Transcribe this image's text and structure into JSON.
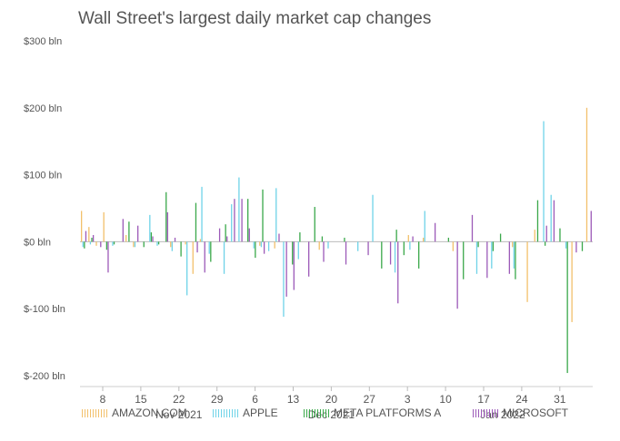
{
  "chart_data": {
    "type": "bar",
    "title": "Wall Street's largest daily market cap changes",
    "xlabel": "",
    "ylabel": "",
    "ylim": [
      -200,
      300
    ],
    "yticks": [
      300,
      200,
      100,
      0,
      -100,
      -200
    ],
    "ytick_labels": [
      "$300 bln",
      "$200 bln",
      "$100 bln",
      "$0 bln",
      "$-100 bln",
      "$-200 bln"
    ],
    "xtick_labels": [
      "8",
      "15",
      "22",
      "29",
      "6",
      "13",
      "20",
      "27",
      "3",
      "10",
      "17",
      "24",
      "31"
    ],
    "month_labels": [
      {
        "label": "Nov 2021",
        "tick": 2
      },
      {
        "label": "Dec 2021",
        "tick": 6
      },
      {
        "label": "Jan 2022",
        "tick": 10.5
      }
    ],
    "grid": false,
    "legend_position": "bottom",
    "series": [
      {
        "name": "AMAZON.COM",
        "color": "#f2c06b",
        "values": [
          46,
          22,
          -6,
          44,
          0,
          0,
          10,
          -8,
          0,
          0,
          0,
          0,
          -8,
          0,
          -4,
          -48,
          4,
          0,
          0,
          0,
          0,
          0,
          0,
          0,
          -6,
          0,
          -10,
          0,
          0,
          0,
          0,
          0,
          -12,
          0,
          0,
          0,
          0,
          0,
          0,
          0,
          0,
          0,
          0,
          0,
          10,
          0,
          6,
          0,
          0,
          0,
          -14,
          0,
          0,
          0,
          0,
          0,
          0,
          0,
          -8,
          0,
          -90,
          18,
          0,
          0,
          0,
          0,
          -120,
          0,
          200
        ]
      },
      {
        "name": "APPLE",
        "color": "#6fd3e8",
        "values": [
          -8,
          -4,
          0,
          0,
          -6,
          0,
          0,
          -8,
          0,
          40,
          -6,
          0,
          -14,
          0,
          -80,
          0,
          82,
          -18,
          0,
          -48,
          56,
          96,
          0,
          -10,
          -8,
          -14,
          80,
          -112,
          0,
          -26,
          0,
          0,
          0,
          -10,
          0,
          0,
          0,
          -14,
          0,
          70,
          0,
          0,
          -46,
          0,
          -12,
          0,
          46,
          0,
          0,
          0,
          0,
          0,
          0,
          -48,
          0,
          -40,
          0,
          0,
          -40,
          0,
          0,
          0,
          180,
          70,
          0,
          -10,
          0,
          0,
          0
        ]
      },
      {
        "name": "META PLATFORMS A",
        "color": "#3aa84a",
        "values": [
          -10,
          6,
          0,
          -12,
          -4,
          0,
          30,
          0,
          -8,
          14,
          -4,
          74,
          0,
          -22,
          0,
          58,
          0,
          -30,
          0,
          26,
          0,
          0,
          64,
          -24,
          78,
          0,
          0,
          0,
          -34,
          14,
          0,
          52,
          8,
          0,
          0,
          6,
          0,
          0,
          0,
          0,
          -40,
          0,
          18,
          -20,
          0,
          -40,
          0,
          0,
          0,
          6,
          0,
          -56,
          0,
          -8,
          0,
          -14,
          12,
          0,
          -56,
          0,
          0,
          62,
          -6,
          0,
          20,
          -196,
          0,
          -14,
          0
        ]
      },
      {
        "name": "MICROSOFT",
        "color": "#9c5ab8",
        "values": [
          16,
          10,
          -8,
          -46,
          0,
          34,
          0,
          24,
          0,
          8,
          0,
          44,
          6,
          0,
          0,
          -16,
          -46,
          0,
          20,
          8,
          64,
          64,
          20,
          0,
          -18,
          0,
          12,
          -82,
          -72,
          0,
          -52,
          0,
          -30,
          0,
          0,
          -34,
          0,
          0,
          -20,
          0,
          0,
          -34,
          -92,
          0,
          8,
          0,
          0,
          28,
          0,
          0,
          -100,
          0,
          40,
          0,
          -54,
          0,
          0,
          -48,
          0,
          0,
          0,
          0,
          24,
          62,
          0,
          0,
          -16,
          0,
          46
        ]
      }
    ]
  }
}
